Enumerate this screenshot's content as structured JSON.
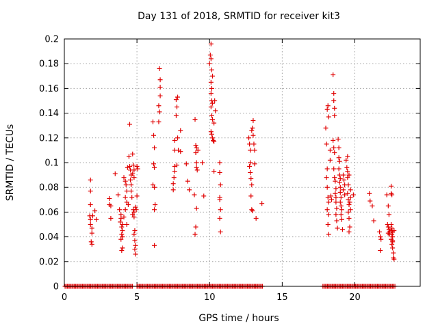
{
  "chart_data": {
    "type": "scatter",
    "title": "Day 131 of 2018, SRMTID for receiver kit3",
    "xlabel": "GPS time / hours",
    "ylabel": "SRMTID / TECUs",
    "xlim": [
      0,
      24.5
    ],
    "ylim": [
      0,
      0.2
    ],
    "x_ticks": [
      0,
      5,
      10,
      15,
      20
    ],
    "x_tick_labels": [
      "0",
      "5",
      "10",
      "15",
      "20"
    ],
    "y_ticks": [
      0,
      0.02,
      0.04,
      0.06,
      0.08,
      0.1,
      0.12,
      0.14,
      0.16,
      0.18,
      0.2
    ],
    "y_tick_labels": [
      "0",
      "0.02",
      "0.04",
      "0.06",
      "0.08",
      "0.1",
      "0.12",
      "0.14",
      "0.16",
      "0.18",
      "0.2"
    ],
    "grid": true,
    "marker": "+",
    "color": "#e00000",
    "zero_baseline_segments": [
      [
        0.05,
        4.7
      ],
      [
        5.0,
        13.7
      ],
      [
        17.8,
        22.8
      ]
    ],
    "zero_baseline_step": 0.08,
    "series": [
      {
        "name": "SRMTID",
        "points": [
          [
            1.8,
            0.086
          ],
          [
            1.8,
            0.077
          ],
          [
            1.8,
            0.066
          ],
          [
            1.75,
            0.057
          ],
          [
            1.8,
            0.054
          ],
          [
            1.8,
            0.05
          ],
          [
            1.9,
            0.047
          ],
          [
            1.9,
            0.043
          ],
          [
            1.85,
            0.036
          ],
          [
            1.9,
            0.034
          ],
          [
            1.95,
            0.057
          ],
          [
            2.1,
            0.061
          ],
          [
            2.2,
            0.054
          ],
          [
            3.1,
            0.071
          ],
          [
            3.1,
            0.066
          ],
          [
            3.2,
            0.065
          ],
          [
            3.2,
            0.055
          ],
          [
            3.5,
            0.091
          ],
          [
            3.7,
            0.074
          ],
          [
            3.8,
            0.062
          ],
          [
            3.9,
            0.058
          ],
          [
            3.9,
            0.055
          ],
          [
            3.85,
            0.052
          ],
          [
            4.0,
            0.05
          ],
          [
            3.95,
            0.048
          ],
          [
            4.0,
            0.045
          ],
          [
            3.95,
            0.042
          ],
          [
            4.0,
            0.04
          ],
          [
            3.9,
            0.038
          ],
          [
            4.0,
            0.031
          ],
          [
            3.95,
            0.029
          ],
          [
            4.1,
            0.056
          ],
          [
            4.2,
            0.062
          ],
          [
            4.3,
            0.05
          ],
          [
            4.1,
            0.088
          ],
          [
            4.2,
            0.085
          ],
          [
            4.25,
            0.082
          ],
          [
            4.3,
            0.077
          ],
          [
            4.2,
            0.072
          ],
          [
            4.3,
            0.068
          ],
          [
            4.35,
            0.096
          ],
          [
            4.4,
            0.066
          ],
          [
            4.5,
            0.131
          ],
          [
            4.45,
            0.105
          ],
          [
            4.5,
            0.097
          ],
          [
            4.55,
            0.094
          ],
          [
            4.6,
            0.09
          ],
          [
            4.55,
            0.086
          ],
          [
            4.6,
            0.082
          ],
          [
            4.6,
            0.077
          ],
          [
            4.65,
            0.072
          ],
          [
            4.7,
            0.107
          ],
          [
            4.75,
            0.098
          ],
          [
            4.8,
            0.094
          ],
          [
            4.7,
            0.091
          ],
          [
            4.8,
            0.088
          ],
          [
            4.75,
            0.062
          ],
          [
            4.8,
            0.06
          ],
          [
            4.7,
            0.058
          ],
          [
            4.8,
            0.056
          ],
          [
            4.85,
            0.045
          ],
          [
            4.8,
            0.042
          ],
          [
            4.85,
            0.037
          ],
          [
            4.9,
            0.033
          ],
          [
            4.85,
            0.03
          ],
          [
            4.9,
            0.026
          ],
          [
            4.9,
            0.064
          ],
          [
            4.95,
            0.062
          ],
          [
            5.0,
            0.073
          ],
          [
            5.0,
            0.097
          ],
          [
            5.05,
            0.095
          ],
          [
            6.1,
            0.133
          ],
          [
            6.15,
            0.122
          ],
          [
            6.2,
            0.112
          ],
          [
            6.15,
            0.099
          ],
          [
            6.2,
            0.096
          ],
          [
            6.1,
            0.082
          ],
          [
            6.2,
            0.08
          ],
          [
            6.25,
            0.066
          ],
          [
            6.2,
            0.062
          ],
          [
            6.2,
            0.033
          ],
          [
            6.5,
            0.133
          ],
          [
            6.5,
            0.146
          ],
          [
            6.55,
            0.141
          ],
          [
            6.6,
            0.154
          ],
          [
            6.6,
            0.161
          ],
          [
            6.6,
            0.167
          ],
          [
            6.55,
            0.176
          ],
          [
            7.6,
            0.118
          ],
          [
            7.6,
            0.11
          ],
          [
            7.6,
            0.097
          ],
          [
            7.6,
            0.093
          ],
          [
            7.55,
            0.088
          ],
          [
            7.5,
            0.083
          ],
          [
            7.5,
            0.078
          ],
          [
            7.7,
            0.151
          ],
          [
            7.75,
            0.145
          ],
          [
            7.7,
            0.138
          ],
          [
            7.8,
            0.153
          ],
          [
            7.8,
            0.12
          ],
          [
            7.85,
            0.11
          ],
          [
            7.75,
            0.098
          ],
          [
            8.0,
            0.126
          ],
          [
            8.0,
            0.109
          ],
          [
            8.4,
            0.099
          ],
          [
            8.5,
            0.085
          ],
          [
            8.6,
            0.078
          ],
          [
            9.0,
            0.135
          ],
          [
            9.05,
            0.114
          ],
          [
            9.1,
            0.112
          ],
          [
            9.05,
            0.108
          ],
          [
            9.1,
            0.1
          ],
          [
            9.1,
            0.096
          ],
          [
            9.15,
            0.094
          ],
          [
            8.95,
            0.074
          ],
          [
            9.1,
            0.063
          ],
          [
            9.05,
            0.048
          ],
          [
            9.0,
            0.042
          ],
          [
            9.2,
            0.11
          ],
          [
            9.5,
            0.1
          ],
          [
            9.6,
            0.073
          ],
          [
            10.0,
            0.18
          ],
          [
            10.1,
            0.196
          ],
          [
            10.05,
            0.187
          ],
          [
            10.1,
            0.184
          ],
          [
            10.15,
            0.175
          ],
          [
            10.2,
            0.17
          ],
          [
            10.1,
            0.165
          ],
          [
            10.15,
            0.16
          ],
          [
            10.1,
            0.156
          ],
          [
            10.15,
            0.15
          ],
          [
            10.2,
            0.148
          ],
          [
            10.1,
            0.145
          ],
          [
            10.15,
            0.138
          ],
          [
            10.2,
            0.135
          ],
          [
            10.1,
            0.125
          ],
          [
            10.2,
            0.12
          ],
          [
            10.25,
            0.118
          ],
          [
            10.3,
            0.117
          ],
          [
            10.15,
            0.123
          ],
          [
            10.3,
            0.132
          ],
          [
            10.35,
            0.15
          ],
          [
            10.4,
            0.142
          ],
          [
            10.3,
            0.093
          ],
          [
            10.7,
            0.1
          ],
          [
            10.7,
            0.092
          ],
          [
            10.75,
            0.082
          ],
          [
            10.7,
            0.072
          ],
          [
            10.7,
            0.07
          ],
          [
            10.75,
            0.062
          ],
          [
            10.7,
            0.055
          ],
          [
            10.75,
            0.044
          ],
          [
            12.7,
            0.12
          ],
          [
            12.75,
            0.115
          ],
          [
            12.8,
            0.11
          ],
          [
            12.8,
            0.1
          ],
          [
            12.75,
            0.097
          ],
          [
            12.8,
            0.092
          ],
          [
            12.85,
            0.087
          ],
          [
            12.9,
            0.082
          ],
          [
            12.85,
            0.073
          ],
          [
            12.9,
            0.062
          ],
          [
            12.95,
            0.061
          ],
          [
            12.9,
            0.126
          ],
          [
            12.95,
            0.128
          ],
          [
            13.0,
            0.134
          ],
          [
            13.0,
            0.122
          ],
          [
            13.05,
            0.115
          ],
          [
            13.1,
            0.11
          ],
          [
            13.1,
            0.099
          ],
          [
            13.2,
            0.055
          ],
          [
            13.6,
            0.067
          ],
          [
            18.0,
            0.128
          ],
          [
            18.05,
            0.115
          ],
          [
            18.1,
            0.143
          ],
          [
            18.15,
            0.146
          ],
          [
            18.2,
            0.137
          ],
          [
            18.1,
            0.095
          ],
          [
            18.05,
            0.088
          ],
          [
            18.1,
            0.08
          ],
          [
            18.15,
            0.072
          ],
          [
            18.2,
            0.068
          ],
          [
            18.1,
            0.062
          ],
          [
            18.2,
            0.058
          ],
          [
            18.15,
            0.05
          ],
          [
            18.2,
            0.042
          ],
          [
            18.3,
            0.11
          ],
          [
            18.3,
            0.102
          ],
          [
            18.35,
            0.073
          ],
          [
            18.4,
            0.07
          ],
          [
            18.5,
            0.171
          ],
          [
            18.55,
            0.156
          ],
          [
            18.55,
            0.15
          ],
          [
            18.6,
            0.144
          ],
          [
            18.6,
            0.138
          ],
          [
            18.5,
            0.118
          ],
          [
            18.55,
            0.112
          ],
          [
            18.6,
            0.108
          ],
          [
            18.55,
            0.095
          ],
          [
            18.6,
            0.088
          ],
          [
            18.65,
            0.085
          ],
          [
            18.7,
            0.079
          ],
          [
            18.65,
            0.075
          ],
          [
            18.7,
            0.072
          ],
          [
            18.7,
            0.068
          ],
          [
            18.75,
            0.063
          ],
          [
            18.7,
            0.058
          ],
          [
            18.75,
            0.053
          ],
          [
            18.8,
            0.047
          ],
          [
            18.85,
            0.119
          ],
          [
            18.9,
            0.112
          ],
          [
            18.9,
            0.104
          ],
          [
            18.95,
            0.101
          ],
          [
            18.9,
            0.095
          ],
          [
            18.95,
            0.09
          ],
          [
            19.0,
            0.087
          ],
          [
            18.95,
            0.084
          ],
          [
            19.0,
            0.08
          ],
          [
            19.0,
            0.076
          ],
          [
            19.05,
            0.072
          ],
          [
            19.0,
            0.068
          ],
          [
            19.05,
            0.065
          ],
          [
            19.1,
            0.062
          ],
          [
            19.05,
            0.058
          ],
          [
            19.1,
            0.054
          ],
          [
            19.15,
            0.046
          ],
          [
            19.2,
            0.09
          ],
          [
            19.25,
            0.086
          ],
          [
            19.3,
            0.082
          ],
          [
            19.2,
            0.078
          ],
          [
            19.3,
            0.074
          ],
          [
            19.4,
            0.102
          ],
          [
            19.45,
            0.096
          ],
          [
            19.5,
            0.093
          ],
          [
            19.5,
            0.088
          ],
          [
            19.55,
            0.082
          ],
          [
            19.5,
            0.075
          ],
          [
            19.55,
            0.07
          ],
          [
            19.6,
            0.066
          ],
          [
            19.55,
            0.06
          ],
          [
            19.6,
            0.055
          ],
          [
            19.65,
            0.048
          ],
          [
            19.6,
            0.044
          ],
          [
            19.7,
            0.078
          ],
          [
            19.7,
            0.072
          ],
          [
            19.65,
            0.068
          ],
          [
            19.7,
            0.062
          ],
          [
            19.5,
            0.105
          ],
          [
            19.6,
            0.09
          ],
          [
            19.9,
            0.074
          ],
          [
            21.0,
            0.075
          ],
          [
            21.05,
            0.069
          ],
          [
            21.2,
            0.065
          ],
          [
            21.3,
            0.053
          ],
          [
            21.7,
            0.044
          ],
          [
            21.75,
            0.04
          ],
          [
            21.8,
            0.038
          ],
          [
            21.75,
            0.029
          ],
          [
            22.2,
            0.074
          ],
          [
            22.3,
            0.065
          ],
          [
            22.35,
            0.058
          ],
          [
            22.25,
            0.05
          ],
          [
            22.3,
            0.048
          ],
          [
            22.35,
            0.046
          ],
          [
            22.4,
            0.044
          ],
          [
            22.3,
            0.043
          ],
          [
            22.4,
            0.042
          ],
          [
            22.5,
            0.081
          ],
          [
            22.5,
            0.075
          ],
          [
            22.55,
            0.074
          ],
          [
            22.5,
            0.05
          ],
          [
            22.55,
            0.047
          ],
          [
            22.5,
            0.045
          ],
          [
            22.6,
            0.044
          ],
          [
            22.55,
            0.042
          ],
          [
            22.6,
            0.04
          ],
          [
            22.5,
            0.038
          ],
          [
            22.6,
            0.036
          ],
          [
            22.55,
            0.034
          ],
          [
            22.6,
            0.031
          ],
          [
            22.65,
            0.027
          ],
          [
            22.65,
            0.023
          ],
          [
            22.7,
            0.022
          ],
          [
            22.7,
            0.045
          ],
          [
            22.6,
            0.037
          ]
        ]
      }
    ]
  }
}
